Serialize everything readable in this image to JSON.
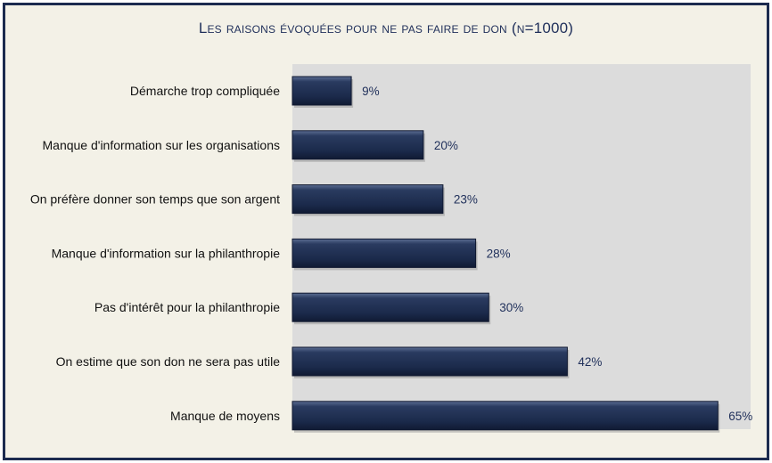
{
  "chart_data": {
    "type": "bar",
    "orientation": "horizontal",
    "title": "Les raisons évoquées pour ne pas faire de don (n=1000)",
    "categories": [
      "Démarche trop compliquée",
      "Manque d'information sur les organisations",
      "On préfère donner son temps que son argent",
      "Manque d'information sur la philanthropie",
      "Pas d'intérêt pour la philanthropie",
      "On estime que son don ne sera pas utile",
      "Manque de moyens"
    ],
    "values": [
      9,
      20,
      23,
      28,
      30,
      42,
      65
    ],
    "value_labels": [
      "9%",
      "20%",
      "23%",
      "28%",
      "30%",
      "42%",
      "65%"
    ],
    "xlim": [
      0,
      70
    ],
    "unit": "%",
    "grid": false,
    "legend": "none",
    "colors": {
      "bar": "#1f2f52",
      "plot_background": "#dcdcdc",
      "frame_background": "#f3f1e7",
      "frame_border": "#1c2b4f",
      "title": "#1f2f5a",
      "value_label": "#1f2f5a"
    }
  }
}
